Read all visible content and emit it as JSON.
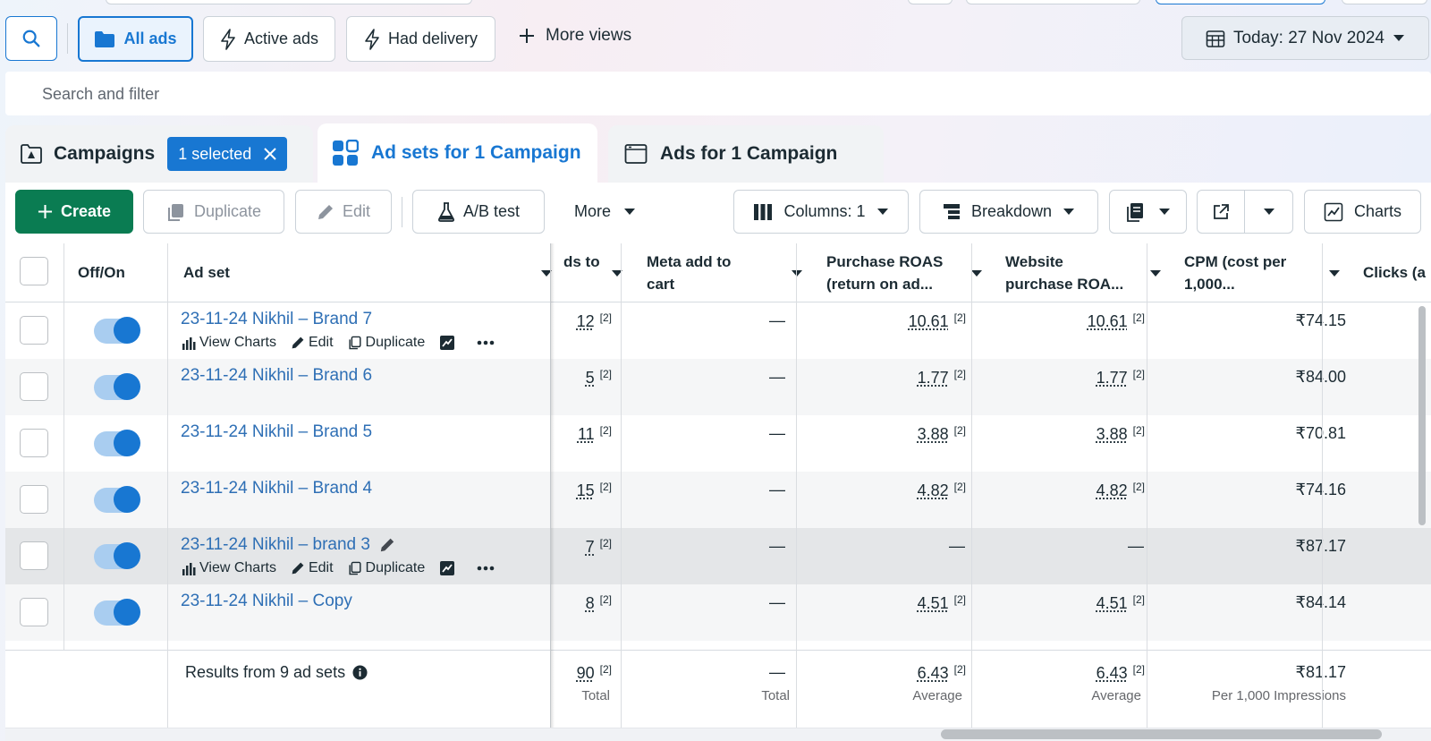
{
  "views": {
    "all_ads": "All ads",
    "active_ads": "Active ads",
    "had_delivery": "Had delivery",
    "more_views": "More views",
    "date": "Today: 27 Nov 2024"
  },
  "search": {
    "placeholder": "Search and filter"
  },
  "tabs": {
    "campaigns": "Campaigns",
    "selected_chip": "1 selected",
    "ad_sets": "Ad sets for 1 Campaign",
    "ads": "Ads for 1 Campaign"
  },
  "toolbar": {
    "create": "Create",
    "duplicate": "Duplicate",
    "edit": "Edit",
    "ab_test": "A/B test",
    "more": "More",
    "columns": "Columns: 1",
    "breakdown": "Breakdown",
    "charts": "Charts"
  },
  "table": {
    "headers": {
      "off_on": "Off/On",
      "ad_set": "Ad set",
      "adds_to_cart": "ds to",
      "meta_add_to_cart_1": "Meta add to",
      "meta_add_to_cart_2": "cart",
      "purchase_roas_1": "Purchase ROAS",
      "purchase_roas_2": "(return on ad...",
      "website_roas_1": "Website",
      "website_roas_2": "purchase ROA...",
      "cpm_1": "CPM (cost per",
      "cpm_2": "1,000...",
      "clicks": "Clicks (a"
    },
    "row_actions": {
      "view_charts": "View Charts",
      "edit": "Edit",
      "duplicate": "Duplicate"
    },
    "rows": [
      {
        "name": "23-11-24 Nikhil – Brand 7",
        "adds": "12",
        "meta": "—",
        "roas": "10.61",
        "web_roas": "10.61",
        "cpm": "₹74.15",
        "fn": "[2]"
      },
      {
        "name": "23-11-24 Nikhil – Brand 6",
        "adds": "5",
        "meta": "—",
        "roas": "1.77",
        "web_roas": "1.77",
        "cpm": "₹84.00",
        "fn": "[2]"
      },
      {
        "name": "23-11-24 Nikhil – Brand 5",
        "adds": "11",
        "meta": "—",
        "roas": "3.88",
        "web_roas": "3.88",
        "cpm": "₹70.81",
        "fn": "[2]"
      },
      {
        "name": "23-11-24 Nikhil – Brand 4",
        "adds": "15",
        "meta": "—",
        "roas": "4.82",
        "web_roas": "4.82",
        "cpm": "₹74.16",
        "fn": "[2]"
      },
      {
        "name": "23-11-24 Nikhil – brand 3",
        "adds": "7",
        "meta": "—",
        "roas": "—",
        "web_roas": "—",
        "cpm": "₹87.17",
        "fn": "[2]"
      },
      {
        "name": "23-11-24 Nikhil – Copy",
        "adds": "8",
        "meta": "—",
        "roas": "4.51",
        "web_roas": "4.51",
        "cpm": "₹84.14",
        "fn": "[2]"
      }
    ],
    "footer": {
      "results": "Results from 9 ad sets",
      "adds": "90",
      "adds_label": "Total",
      "meta": "—",
      "meta_label": "Total",
      "roas": "6.43",
      "roas_label": "Average",
      "web_roas": "6.43",
      "web_roas_label": "Average",
      "cpm": "₹81.17",
      "cpm_label": "Per 1,000 Impressions",
      "fn": "[2]"
    }
  },
  "colors": {
    "accent": "#1877d2",
    "create_green": "#0a7c52",
    "link": "#2e6fb5"
  }
}
